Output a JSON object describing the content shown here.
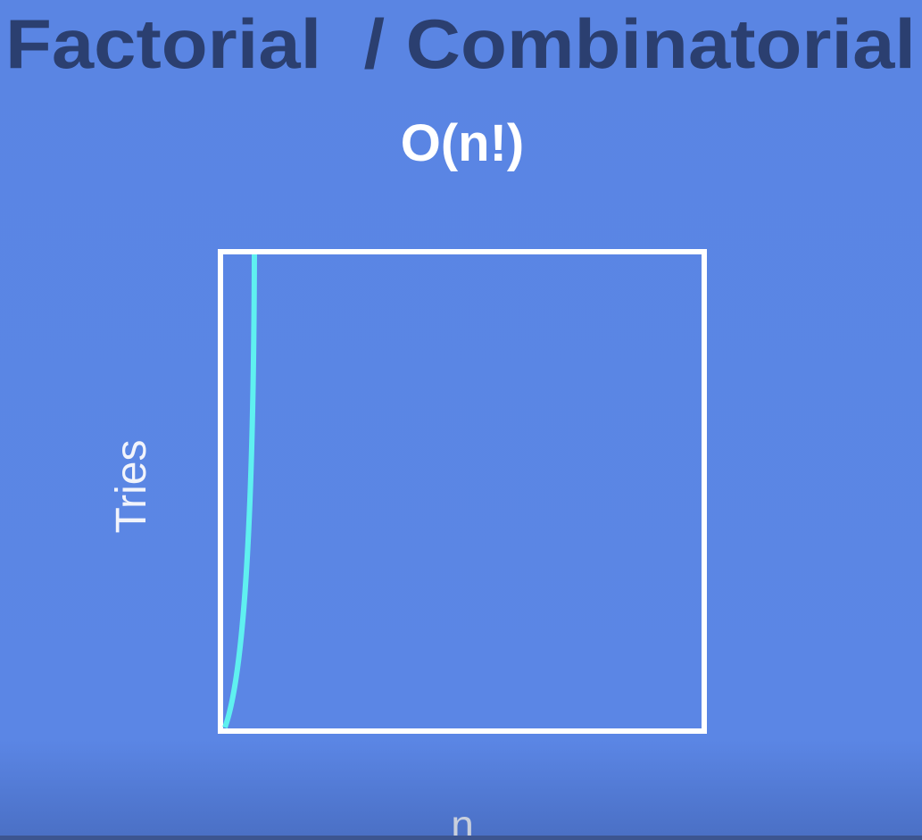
{
  "title": "Factorial  / Combinatorial",
  "subtitle": "O(n!)",
  "y_label": "Tries",
  "x_label": "n"
}
